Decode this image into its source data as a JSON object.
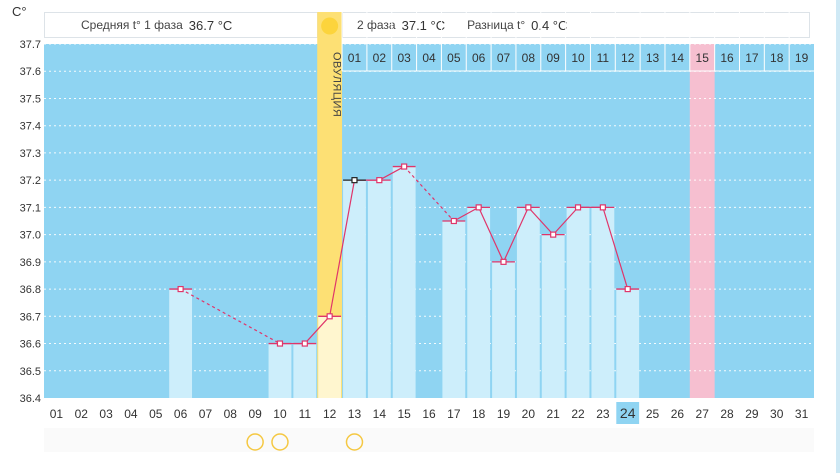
{
  "header": {
    "unit": "C°",
    "phase1_label": "Средняя t° 1 фаза",
    "phase1_value": "36.7 °C",
    "phase2_label": "2 фаза",
    "phase2_value": "37.1 °C",
    "diff_label": "Разница t°",
    "diff_value": "0.4 °C"
  },
  "ovulation_label": "ОВУЛЯЦИЯ",
  "colors": {
    "background": "#8fd4f2",
    "bar": "#cdeefb",
    "line": "#e0356a",
    "ovulation": "#fde074",
    "highlight_day": "#f6bfd0",
    "today": "#8fd4f2"
  },
  "chart_data": {
    "type": "line",
    "ylim": [
      36.4,
      37.7
    ],
    "yticks": [
      "36.4",
      "36.5",
      "36.6",
      "36.7",
      "36.8",
      "36.9",
      "37.0",
      "37.1",
      "37.2",
      "37.3",
      "37.4",
      "37.5",
      "37.6",
      "37.7"
    ],
    "days": [
      "01",
      "02",
      "03",
      "04",
      "05",
      "06",
      "07",
      "08",
      "09",
      "10",
      "11",
      "12",
      "13",
      "14",
      "15",
      "16",
      "17",
      "18",
      "19",
      "20",
      "21",
      "22",
      "23",
      "24",
      "25",
      "26",
      "27",
      "28",
      "29",
      "30",
      "31"
    ],
    "phase2_days": [
      "01",
      "02",
      "03",
      "04",
      "05",
      "06",
      "07",
      "08",
      "09",
      "10",
      "11",
      "12",
      "13",
      "14",
      "15",
      "16",
      "17",
      "18",
      "19"
    ],
    "temperatures": [
      null,
      null,
      null,
      null,
      null,
      36.8,
      null,
      null,
      null,
      36.6,
      36.6,
      36.7,
      37.2,
      37.2,
      37.25,
      null,
      37.05,
      37.1,
      36.9,
      37.1,
      37.0,
      37.1,
      37.1,
      36.8,
      null,
      null,
      null,
      null,
      null,
      null,
      null
    ],
    "ovulation_day": "12",
    "highlighted_day": "27",
    "today": "24",
    "marked_days": [
      "09",
      "10",
      "13"
    ]
  }
}
